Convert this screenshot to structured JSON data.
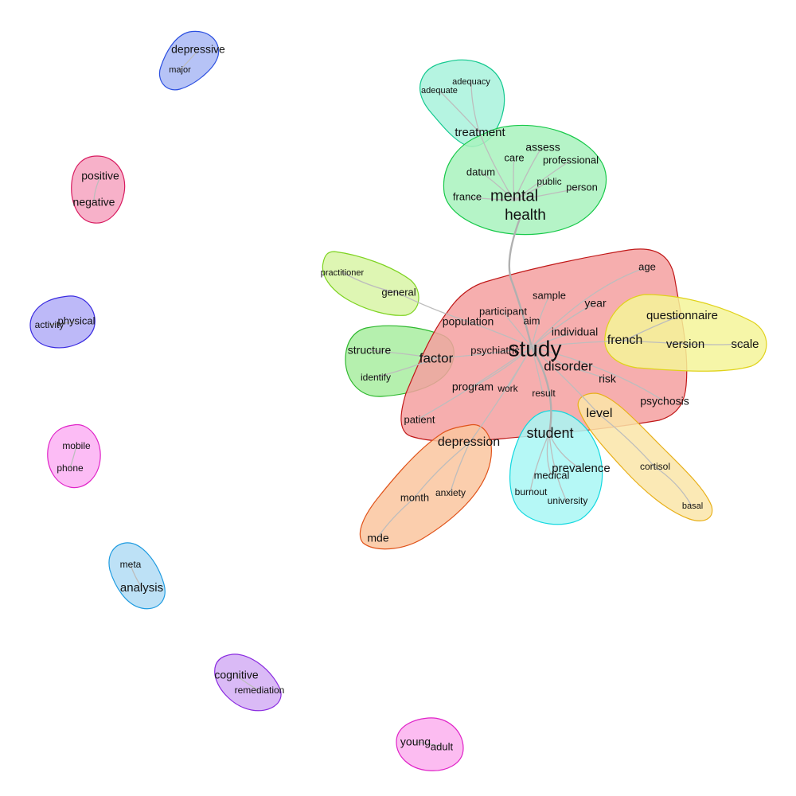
{
  "communities": [
    {
      "id": "depressive-major",
      "fill": "#a9b8f5",
      "stroke": "#2b4fe0",
      "words": [
        {
          "text": "depressive",
          "size": 14
        },
        {
          "text": "major",
          "size": 11
        }
      ]
    },
    {
      "id": "positive-negative",
      "fill": "#f6a3c0",
      "stroke": "#d81b60",
      "words": [
        {
          "text": "positive",
          "size": 14
        },
        {
          "text": "negative",
          "size": 14
        }
      ]
    },
    {
      "id": "physical-activity",
      "fill": "#b1adf7",
      "stroke": "#3a2be0",
      "words": [
        {
          "text": "physical",
          "size": 13
        },
        {
          "text": "activity",
          "size": 12
        }
      ]
    },
    {
      "id": "mobile-phone",
      "fill": "#fbb0f3",
      "stroke": "#e024c8",
      "words": [
        {
          "text": "mobile",
          "size": 12
        },
        {
          "text": "phone",
          "size": 12
        }
      ]
    },
    {
      "id": "meta-analysis",
      "fill": "#b2dcf5",
      "stroke": "#1e9be0",
      "words": [
        {
          "text": "meta",
          "size": 12
        },
        {
          "text": "analysis",
          "size": 15
        }
      ]
    },
    {
      "id": "cognitive-remediation",
      "fill": "#d3aef5",
      "stroke": "#8a2be0",
      "words": [
        {
          "text": "cognitive",
          "size": 14
        },
        {
          "text": "remediation",
          "size": 12
        }
      ]
    },
    {
      "id": "young-adult",
      "fill": "#fbb0ef",
      "stroke": "#e024c8",
      "words": [
        {
          "text": "young",
          "size": 14
        },
        {
          "text": "adult",
          "size": 13
        }
      ]
    },
    {
      "id": "treatment",
      "fill": "#a8f2dc",
      "stroke": "#13c98f",
      "words": [
        {
          "text": "adequacy",
          "size": 11
        },
        {
          "text": "adequate",
          "size": 11
        },
        {
          "text": "treatment",
          "size": 15
        }
      ]
    },
    {
      "id": "mental-health",
      "fill": "#a8f2bd",
      "stroke": "#18c94a",
      "words": [
        {
          "text": "assess",
          "size": 14
        },
        {
          "text": "care",
          "size": 13
        },
        {
          "text": "professional",
          "size": 13
        },
        {
          "text": "datum",
          "size": 13
        },
        {
          "text": "public",
          "size": 12
        },
        {
          "text": "person",
          "size": 13
        },
        {
          "text": "france",
          "size": 13
        },
        {
          "text": "mental",
          "size": 20
        },
        {
          "text": "health",
          "size": 19
        }
      ]
    },
    {
      "id": "general-practitioner",
      "fill": "#d8f5a6",
      "stroke": "#7ed321",
      "words": [
        {
          "text": "practitioner",
          "size": 11
        },
        {
          "text": "general",
          "size": 13
        }
      ]
    },
    {
      "id": "factor",
      "fill": "#a8eda0",
      "stroke": "#2fb82f",
      "words": [
        {
          "text": "structure",
          "size": 14
        },
        {
          "text": "factor",
          "size": 17
        },
        {
          "text": "identify",
          "size": 12
        }
      ]
    },
    {
      "id": "study",
      "fill": "#f5a0a0",
      "stroke": "#c01818",
      "words": [
        {
          "text": "age",
          "size": 13
        },
        {
          "text": "sample",
          "size": 13
        },
        {
          "text": "year",
          "size": 14
        },
        {
          "text": "participant",
          "size": 13
        },
        {
          "text": "population",
          "size": 14
        },
        {
          "text": "aim",
          "size": 13
        },
        {
          "text": "individual",
          "size": 14
        },
        {
          "text": "psychiatric",
          "size": 13
        },
        {
          "text": "study",
          "size": 28
        },
        {
          "text": "disorder",
          "size": 17
        },
        {
          "text": "risk",
          "size": 14
        },
        {
          "text": "program",
          "size": 14
        },
        {
          "text": "work",
          "size": 12
        },
        {
          "text": "result",
          "size": 12
        },
        {
          "text": "psychosis",
          "size": 14
        },
        {
          "text": "patient",
          "size": 13
        }
      ]
    },
    {
      "id": "french-questionnaire",
      "fill": "#f5f599",
      "stroke": "#e0d21a",
      "words": [
        {
          "text": "questionnaire",
          "size": 15
        },
        {
          "text": "french",
          "size": 16
        },
        {
          "text": "version",
          "size": 15
        },
        {
          "text": "scale",
          "size": 15
        }
      ]
    },
    {
      "id": "level-cortisol",
      "fill": "#fae5a8",
      "stroke": "#e8b01a",
      "words": [
        {
          "text": "level",
          "size": 16
        },
        {
          "text": "cortisol",
          "size": 12
        },
        {
          "text": "basal",
          "size": 11
        }
      ]
    },
    {
      "id": "depression",
      "fill": "#fac59f",
      "stroke": "#e0531a",
      "words": [
        {
          "text": "depression",
          "size": 16
        },
        {
          "text": "month",
          "size": 13
        },
        {
          "text": "anxiety",
          "size": 12
        },
        {
          "text": "mde",
          "size": 14
        }
      ]
    },
    {
      "id": "student",
      "fill": "#a8f7f5",
      "stroke": "#12d8e0",
      "words": [
        {
          "text": "student",
          "size": 18
        },
        {
          "text": "prevalence",
          "size": 15
        },
        {
          "text": "medical",
          "size": 13
        },
        {
          "text": "burnout",
          "size": 12
        },
        {
          "text": "university",
          "size": 12
        }
      ]
    }
  ]
}
